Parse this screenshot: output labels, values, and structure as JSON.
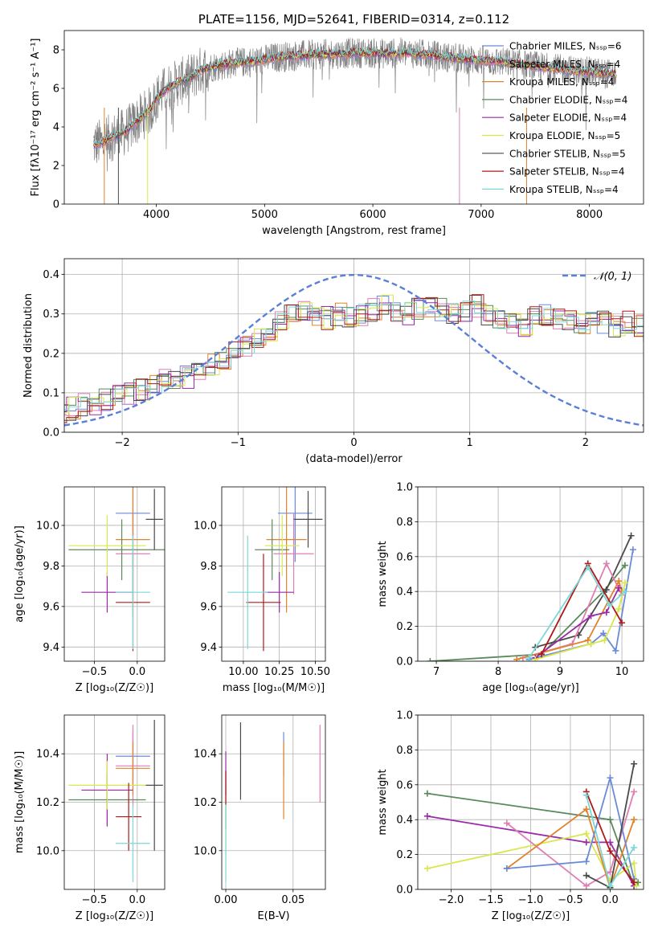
{
  "colors": {
    "chabrier_miles": "#6a8ad8",
    "salpeter_miles": "#e07fb4",
    "kroupa_miles": "#e0832c",
    "chabrier_elodie": "#5a8a5a",
    "salpeter_elodie": "#9a2aa8",
    "kroupa_elodie": "#d8e84c",
    "chabrier_stelib": "#4a4a4a",
    "salpeter_stelib": "#b01818",
    "kroupa_stelib": "#7ad8d8",
    "observed": "#808080",
    "normal": "#5a7fd6"
  },
  "chart_data": [
    {
      "id": "spectrum",
      "type": "line",
      "title": "PLATE=1156, MJD=52641, FIBERID=0314, z=0.112",
      "xlabel": "wavelength [Angstrom, rest frame]",
      "ylabel": "Flux [fλ10⁻¹⁷ erg cm⁻² s⁻¹ A⁻¹]",
      "xlim": [
        3150,
        8500
      ],
      "ylim": [
        0,
        9
      ],
      "xticks": [
        "4000",
        "5000",
        "6000",
        "7000",
        "8000"
      ],
      "yticks": [
        "0",
        "2",
        "4",
        "6",
        "8"
      ],
      "legend_position": "upper-right",
      "legend": [
        "Chabrier MILES, Nₛₛₚ=6",
        "Salpeter MILES, Nₛₛₚ=4",
        "Kroupa MILES, Nₛₛₚ=4",
        "Chabrier ELODIE, Nₛₛₚ=4",
        "Salpeter ELODIE, Nₛₛₚ=4",
        "Kroupa ELODIE, Nₛₛₚ=5",
        "Chabrier STELIB, Nₛₛₚ=5",
        "Salpeter STELIB, Nₛₛₚ=4",
        "Kroupa STELIB, Nₛₛₚ=4"
      ],
      "continuum": [
        [
          3420,
          3.1
        ],
        [
          3500,
          3.2
        ],
        [
          3600,
          3.5
        ],
        [
          3700,
          3.7
        ],
        [
          3800,
          4.2
        ],
        [
          3880,
          4.6
        ],
        [
          3950,
          4.9
        ],
        [
          4000,
          5.5
        ],
        [
          4100,
          6.0
        ],
        [
          4200,
          6.3
        ],
        [
          4300,
          6.5
        ],
        [
          4400,
          6.9
        ],
        [
          4500,
          7.1
        ],
        [
          4700,
          7.3
        ],
        [
          4900,
          7.4
        ],
        [
          5100,
          7.6
        ],
        [
          5300,
          7.7
        ],
        [
          5500,
          7.75
        ],
        [
          5700,
          7.8
        ],
        [
          5900,
          7.85
        ],
        [
          6100,
          7.8
        ],
        [
          6300,
          7.85
        ],
        [
          6500,
          7.75
        ],
        [
          6700,
          7.6
        ],
        [
          6900,
          7.5
        ],
        [
          7100,
          7.4
        ],
        [
          7300,
          7.3
        ],
        [
          7500,
          7.15
        ],
        [
          7700,
          7.0
        ],
        [
          7900,
          6.9
        ],
        [
          8100,
          6.8
        ],
        [
          8250,
          6.7
        ]
      ]
    },
    {
      "id": "residuals",
      "type": "line",
      "xlabel": "(data-model)/error",
      "ylabel": "Normed distribution",
      "xlim": [
        -2.5,
        2.5
      ],
      "ylim": [
        0,
        0.44
      ],
      "xticks": [
        "−2",
        "−1",
        "0",
        "1",
        "2"
      ],
      "yticks": [
        "0.0",
        "0.1",
        "0.2",
        "0.3",
        "0.4"
      ],
      "legend": [
        "𝒩(0, 1)"
      ],
      "legend_position": "upper-right",
      "bin_width": 0.1,
      "mean_histogram": [
        0.05,
        0.06,
        0.07,
        0.07,
        0.08,
        0.09,
        0.1,
        0.11,
        0.12,
        0.13,
        0.14,
        0.14,
        0.15,
        0.17,
        0.18,
        0.2,
        0.22,
        0.24,
        0.26,
        0.28,
        0.3,
        0.31,
        0.3,
        0.29,
        0.3,
        0.29,
        0.3,
        0.31,
        0.32,
        0.31,
        0.3,
        0.31,
        0.32,
        0.31,
        0.3,
        0.31,
        0.32,
        0.3,
        0.29,
        0.28,
        0.27,
        0.29,
        0.3,
        0.29,
        0.28,
        0.27,
        0.29,
        0.28,
        0.27,
        0.28,
        0.27,
        0.26,
        0.24,
        0.23,
        0.22,
        0.21,
        0.2,
        0.19,
        0.17,
        0.16,
        0.15,
        0.14,
        0.13,
        0.12,
        0.11,
        0.1,
        0.09,
        0.08,
        0.07,
        0.07,
        0.06
      ]
    },
    {
      "id": "age_vs_z",
      "type": "scatter",
      "xlabel": "Z [log₁₀(Z/Z☉)]",
      "ylabel": "age  [log₁₀(age/yr)]",
      "xlim": [
        -0.85,
        0.32
      ],
      "ylim": [
        9.33,
        10.19
      ],
      "xticks": [
        "−0.5",
        "0.0"
      ],
      "yticks": [
        "9.4",
        "9.6",
        "9.8",
        "10.0"
      ],
      "points": [
        {
          "series": "chabrier_miles",
          "x": -0.05,
          "y": 10.06,
          "xerr": 0.2,
          "yerr": 0.2
        },
        {
          "series": "salpeter_miles",
          "x": -0.05,
          "y": 9.86,
          "xerr": 0.2,
          "yerr": 0.2
        },
        {
          "series": "kroupa_miles",
          "x": -0.05,
          "y": 9.93,
          "xerr": 0.2,
          "yerr": 0.38
        },
        {
          "series": "chabrier_elodie",
          "x": -0.18,
          "y": 9.88,
          "xerr": 0.62,
          "yerr": 0.15
        },
        {
          "series": "salpeter_elodie",
          "x": -0.35,
          "y": 9.67,
          "xerr": 0.3,
          "yerr": 0.1
        },
        {
          "series": "kroupa_elodie",
          "x": -0.35,
          "y": 9.9,
          "xerr": 0.45,
          "yerr": 0.15
        },
        {
          "series": "chabrier_stelib",
          "x": 0.2,
          "y": 10.03,
          "xerr": 0.1,
          "yerr": 0.15
        },
        {
          "series": "salpeter_stelib",
          "x": -0.05,
          "y": 9.62,
          "xerr": 0.2,
          "yerr": 0.24
        },
        {
          "series": "kroupa_stelib",
          "x": -0.05,
          "y": 9.67,
          "xerr": 0.2,
          "yerr": 0.28
        }
      ]
    },
    {
      "id": "age_vs_mass",
      "type": "scatter",
      "xlabel": "mass [log₁₀(M/M☉)]",
      "ylabel": "",
      "xlim": [
        9.85,
        10.57
      ],
      "ylim": [
        9.33,
        10.19
      ],
      "xticks": [
        "10.00",
        "10.25",
        "10.50"
      ],
      "yticks": [
        "9.4",
        "9.6",
        "9.8",
        "10.0"
      ],
      "points": [
        {
          "series": "chabrier_miles",
          "x": 10.36,
          "y": 10.06,
          "xerr": 0.12,
          "yerr": 0.24
        },
        {
          "series": "salpeter_miles",
          "x": 10.35,
          "y": 9.86,
          "xerr": 0.14,
          "yerr": 0.2
        },
        {
          "series": "kroupa_miles",
          "x": 10.3,
          "y": 9.93,
          "xerr": 0.14,
          "yerr": 0.36
        },
        {
          "series": "chabrier_elodie",
          "x": 10.2,
          "y": 9.88,
          "xerr": 0.12,
          "yerr": 0.15
        },
        {
          "series": "salpeter_elodie",
          "x": 10.25,
          "y": 9.67,
          "xerr": 0.1,
          "yerr": 0.1
        },
        {
          "series": "kroupa_elodie",
          "x": 10.27,
          "y": 9.9,
          "xerr": 0.12,
          "yerr": 0.15
        },
        {
          "series": "chabrier_stelib",
          "x": 10.45,
          "y": 10.03,
          "xerr": 0.1,
          "yerr": 0.14
        },
        {
          "series": "salpeter_stelib",
          "x": 10.14,
          "y": 9.62,
          "xerr": 0.12,
          "yerr": 0.24
        },
        {
          "series": "kroupa_stelib",
          "x": 10.03,
          "y": 9.67,
          "xerr": 0.14,
          "yerr": 0.28
        }
      ]
    },
    {
      "id": "weight_vs_age",
      "type": "line",
      "xlabel": "age  [log₁₀(age/yr)]",
      "ylabel": "mass weight",
      "xlim": [
        6.7,
        10.35
      ],
      "ylim": [
        0,
        1
      ],
      "xticks": [
        "7",
        "8",
        "9",
        "10"
      ],
      "yticks": [
        "0.0",
        "0.2",
        "0.4",
        "0.6",
        "0.8",
        "1.0"
      ],
      "series": [
        {
          "key": "chabrier_elodie",
          "x": [
            6.9,
            8.7,
            9.7,
            10.05
          ],
          "y": [
            0.0,
            0.04,
            0.4,
            0.55
          ]
        },
        {
          "key": "chabrier_stelib",
          "x": [
            8.6,
            9.3,
            9.75,
            10.15
          ],
          "y": [
            0.08,
            0.15,
            0.41,
            0.72
          ]
        },
        {
          "key": "chabrier_miles",
          "x": [
            8.5,
            9.5,
            9.7,
            9.9,
            10.18
          ],
          "y": [
            0.01,
            0.1,
            0.16,
            0.06,
            0.64
          ]
        },
        {
          "key": "salpeter_miles",
          "x": [
            8.4,
            9.2,
            9.75,
            10.0
          ],
          "y": [
            0.02,
            0.1,
            0.56,
            0.38
          ]
        },
        {
          "key": "kroupa_miles",
          "x": [
            8.3,
            9.45,
            9.95,
            10.0
          ],
          "y": [
            0.01,
            0.12,
            0.46,
            0.4
          ]
        },
        {
          "key": "salpeter_elodie",
          "x": [
            8.6,
            9.5,
            9.75,
            9.95
          ],
          "y": [
            0.02,
            0.26,
            0.28,
            0.42
          ]
        },
        {
          "key": "kroupa_elodie",
          "x": [
            8.6,
            9.5,
            9.72,
            9.95,
            10.05
          ],
          "y": [
            0.01,
            0.1,
            0.12,
            0.3,
            0.45
          ]
        },
        {
          "key": "salpeter_stelib",
          "x": [
            8.7,
            9.45,
            10.0
          ],
          "y": [
            0.04,
            0.56,
            0.22
          ]
        },
        {
          "key": "kroupa_stelib",
          "x": [
            8.5,
            9.45,
            9.8,
            10.05
          ],
          "y": [
            0.02,
            0.54,
            0.32,
            0.4
          ]
        }
      ]
    },
    {
      "id": "mass_vs_z",
      "type": "scatter",
      "xlabel": "Z [log₁₀(Z/Z☉)]",
      "ylabel": "mass [log₁₀(M/M☉)]",
      "xlim": [
        -0.85,
        0.32
      ],
      "ylim": [
        9.84,
        10.56
      ],
      "xticks": [
        "−0.5",
        "0.0"
      ],
      "yticks": [
        "10.0",
        "10.2",
        "10.4"
      ],
      "points": [
        {
          "series": "chabrier_miles",
          "x": -0.05,
          "y": 10.39,
          "xerr": 0.2,
          "yerr": 0.1
        },
        {
          "series": "salpeter_miles",
          "x": -0.05,
          "y": 10.35,
          "xerr": 0.2,
          "yerr": 0.17
        },
        {
          "series": "kroupa_miles",
          "x": -0.05,
          "y": 10.34,
          "xerr": 0.2,
          "yerr": 0.11
        },
        {
          "series": "chabrier_elodie",
          "x": -0.35,
          "y": 10.21,
          "xerr": 0.45,
          "yerr": 0.11
        },
        {
          "series": "salpeter_elodie",
          "x": -0.35,
          "y": 10.25,
          "xerr": 0.3,
          "yerr": 0.15
        },
        {
          "series": "kroupa_elodie",
          "x": -0.35,
          "y": 10.27,
          "xerr": 0.45,
          "yerr": 0.1
        },
        {
          "series": "chabrier_stelib",
          "x": 0.2,
          "y": 10.27,
          "xerr": 0.1,
          "yerr": 0.27
        },
        {
          "series": "salpeter_stelib",
          "x": -0.1,
          "y": 10.14,
          "xerr": 0.15,
          "yerr": 0.14
        },
        {
          "series": "kroupa_stelib",
          "x": -0.05,
          "y": 10.03,
          "xerr": 0.2,
          "yerr": 0.16
        }
      ]
    },
    {
      "id": "mass_vs_ebv",
      "type": "scatter",
      "xlabel": "E(B-V)",
      "ylabel": "",
      "xlim": [
        -0.003,
        0.074
      ],
      "ylim": [
        9.84,
        10.56
      ],
      "xticks": [
        "0.00",
        "0.05"
      ],
      "yticks": [
        "10.0",
        "10.2",
        "10.4"
      ],
      "points": [
        {
          "series": "chabrier_miles",
          "x": 0.043,
          "y": 10.4,
          "yerr": 0.09
        },
        {
          "series": "salpeter_miles",
          "x": 0.07,
          "y": 10.36,
          "yerr": 0.16
        },
        {
          "series": "kroupa_miles",
          "x": 0.043,
          "y": 10.29,
          "yerr": 0.16
        },
        {
          "series": "chabrier_elodie",
          "x": 0.0,
          "y": 10.21,
          "yerr": 0.12
        },
        {
          "series": "salpeter_elodie",
          "x": 0.0,
          "y": 10.32,
          "yerr": 0.09
        },
        {
          "series": "kroupa_elodie",
          "x": 0.0,
          "y": 10.1,
          "yerr": 0.12
        },
        {
          "series": "chabrier_stelib",
          "x": 0.011,
          "y": 10.37,
          "yerr": 0.16
        },
        {
          "series": "salpeter_stelib",
          "x": 0.0,
          "y": 10.26,
          "yerr": 0.07
        },
        {
          "series": "kroupa_stelib",
          "x": 0.0,
          "y": 10.03,
          "yerr": 0.16
        }
      ]
    },
    {
      "id": "weight_vs_z",
      "type": "line",
      "xlabel": "Z [log₁₀(Z/Z☉)]",
      "ylabel": "mass weight",
      "xlim": [
        -2.42,
        0.42
      ],
      "ylim": [
        0,
        1
      ],
      "xticks": [
        "−2.0",
        "−1.5",
        "−1.0",
        "−0.5",
        "0.0"
      ],
      "yticks": [
        "0.0",
        "0.2",
        "0.4",
        "0.6",
        "0.8",
        "1.0"
      ],
      "series": [
        {
          "key": "chabrier_elodie",
          "x": [
            -2.3,
            0.0,
            0.3,
            0.35
          ],
          "y": [
            0.55,
            0.4,
            0.02,
            0.04
          ]
        },
        {
          "key": "salpeter_elodie",
          "x": [
            -2.3,
            -0.3,
            0.0,
            0.3
          ],
          "y": [
            0.42,
            0.27,
            0.27,
            0.02
          ]
        },
        {
          "key": "kroupa_elodie",
          "x": [
            -2.3,
            -0.3,
            0.0,
            0.3,
            0.33
          ],
          "y": [
            0.12,
            0.32,
            0.05,
            0.15,
            0.02
          ]
        },
        {
          "key": "salpeter_miles",
          "x": [
            -1.3,
            -0.3,
            0.0,
            0.3
          ],
          "y": [
            0.38,
            0.02,
            0.1,
            0.56
          ]
        },
        {
          "key": "kroupa_miles",
          "x": [
            -1.3,
            -0.3,
            0.0,
            0.3
          ],
          "y": [
            0.12,
            0.46,
            0.01,
            0.4
          ]
        },
        {
          "key": "chabrier_miles",
          "x": [
            -1.3,
            -0.3,
            0.0,
            0.3
          ],
          "y": [
            0.12,
            0.16,
            0.64,
            0.06
          ]
        },
        {
          "key": "chabrier_stelib",
          "x": [
            -0.3,
            0.0,
            0.3
          ],
          "y": [
            0.08,
            0.01,
            0.72
          ]
        },
        {
          "key": "salpeter_stelib",
          "x": [
            -0.3,
            0.0,
            0.3
          ],
          "y": [
            0.56,
            0.22,
            0.04
          ]
        },
        {
          "key": "kroupa_stelib",
          "x": [
            -0.3,
            0.0,
            0.3
          ],
          "y": [
            0.54,
            0.02,
            0.24
          ]
        }
      ]
    }
  ]
}
